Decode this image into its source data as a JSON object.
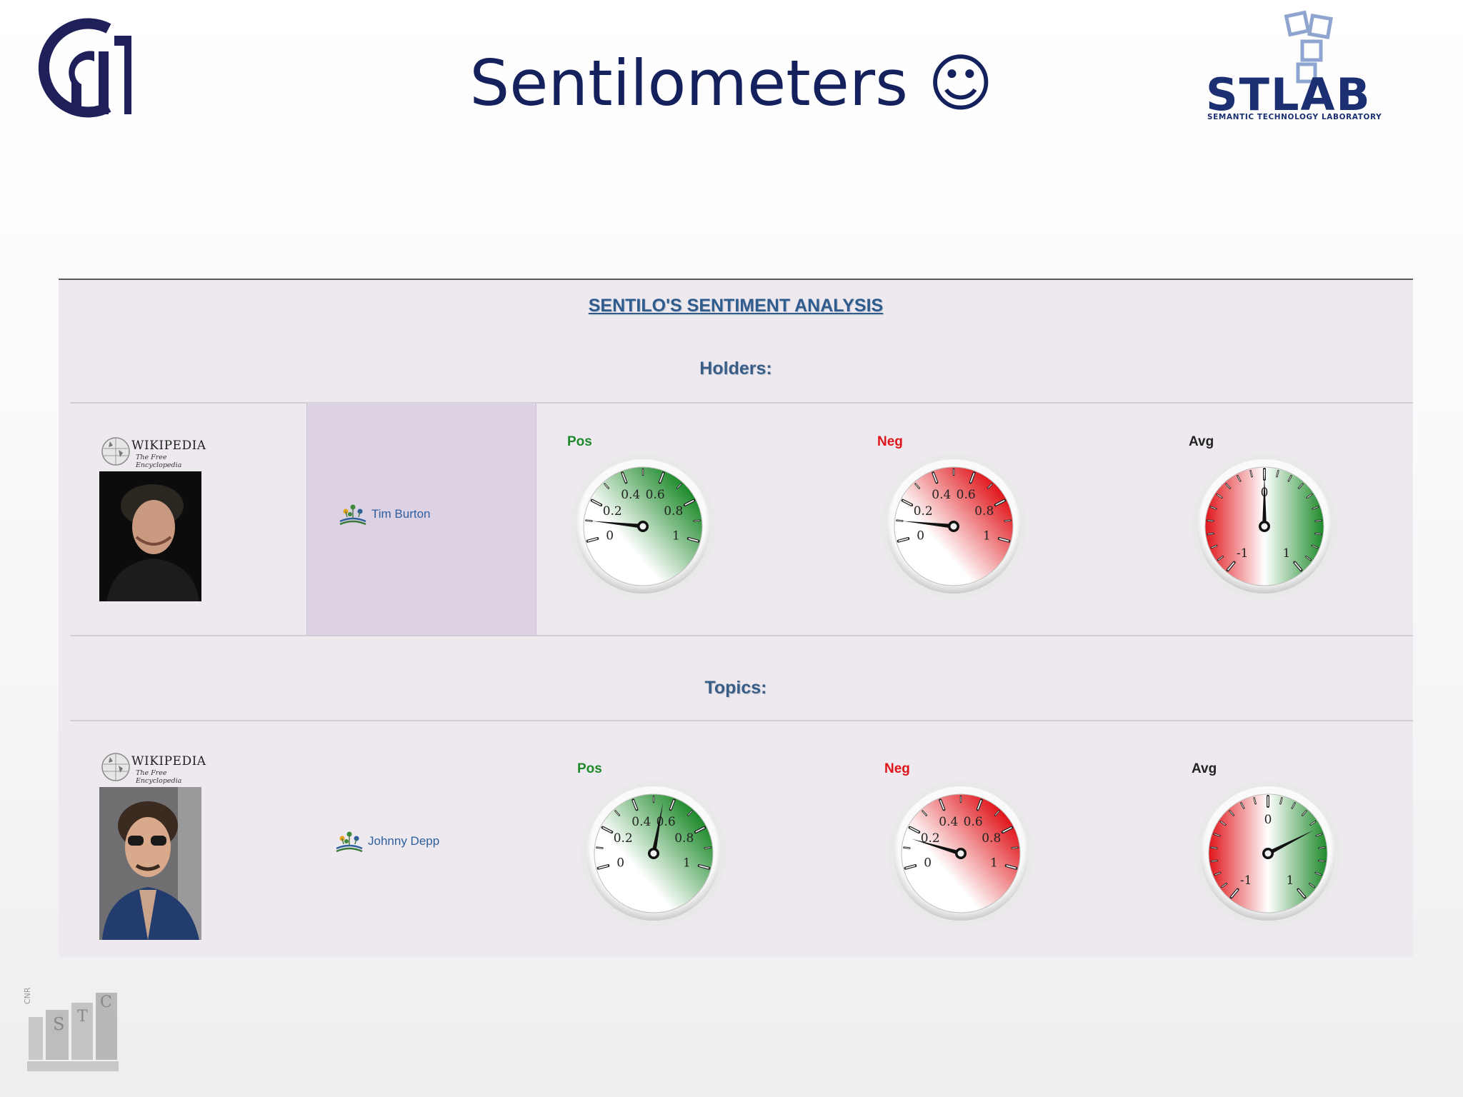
{
  "slide": {
    "title": "Sentilometers ☺",
    "stlab_name": "STLAB",
    "stlab_subtitle": "SEMANTIC TECHNOLOGY LABORATORY"
  },
  "panel": {
    "title": "SENTILO'S SENTIMENT ANALYSIS",
    "holders_label": "Holders:",
    "topics_label": "Topics:"
  },
  "wikipedia": {
    "name": "WIKIPEDIA",
    "tagline": "The Free Encyclopedia"
  },
  "gauges": {
    "pos_label": "Pos",
    "neg_label": "Neg",
    "avg_label": "Avg",
    "unit_ticks": [
      "0",
      "0.2",
      "0.4",
      "0.6",
      "0.8",
      "1"
    ],
    "avg_ticks": [
      "-1",
      "0",
      "1"
    ]
  },
  "holders": [
    {
      "name": "Tim Burton",
      "pos": 0.1,
      "neg": 0.1,
      "avg": 0.0
    }
  ],
  "topics": [
    {
      "name": "Johnny Depp",
      "pos": 0.55,
      "neg": 0.15,
      "avg": 0.45
    }
  ],
  "colors": {
    "title": "#14215c",
    "positive": "#1d8a2a",
    "negative": "#e0151a",
    "link": "#2e5f9e"
  }
}
